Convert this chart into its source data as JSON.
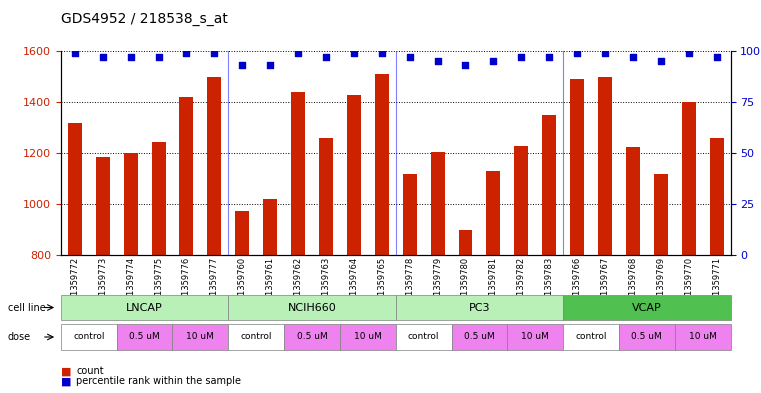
{
  "title": "GDS4952 / 218538_s_at",
  "samples": [
    "GSM1359772",
    "GSM1359773",
    "GSM1359774",
    "GSM1359775",
    "GSM1359776",
    "GSM1359777",
    "GSM1359760",
    "GSM1359761",
    "GSM1359762",
    "GSM1359763",
    "GSM1359764",
    "GSM1359765",
    "GSM1359778",
    "GSM1359779",
    "GSM1359780",
    "GSM1359781",
    "GSM1359782",
    "GSM1359783",
    "GSM1359766",
    "GSM1359767",
    "GSM1359768",
    "GSM1359769",
    "GSM1359770",
    "GSM1359771"
  ],
  "counts": [
    1320,
    1185,
    1200,
    1245,
    1420,
    1500,
    975,
    1020,
    1440,
    1260,
    1430,
    1510,
    1120,
    1205,
    900,
    1130,
    1230,
    1350,
    1490,
    1500,
    1225,
    1120,
    1400,
    1260
  ],
  "percentiles": [
    99,
    97,
    97,
    97,
    99,
    99,
    93,
    93,
    99,
    97,
    99,
    99,
    97,
    95,
    93,
    95,
    97,
    97,
    99,
    99,
    97,
    95,
    99,
    97
  ],
  "cell_lines": [
    {
      "name": "LNCAP",
      "start": 0,
      "end": 6,
      "color": "#90ee90"
    },
    {
      "name": "NCIH660",
      "start": 6,
      "end": 12,
      "color": "#90ee90"
    },
    {
      "name": "PC3",
      "start": 12,
      "end": 18,
      "color": "#90ee90"
    },
    {
      "name": "VCAP",
      "start": 18,
      "end": 24,
      "color": "#3cb371"
    }
  ],
  "doses": [
    {
      "name": "control",
      "start": 0,
      "end": 2,
      "color": "#ffffff"
    },
    {
      "name": "0.5 uM",
      "start": 2,
      "end": 4,
      "color": "#ee82ee"
    },
    {
      "name": "10 uM",
      "start": 4,
      "end": 6,
      "color": "#ee82ee"
    },
    {
      "name": "control",
      "start": 6,
      "end": 8,
      "color": "#ffffff"
    },
    {
      "name": "0.5 uM",
      "start": 8,
      "end": 10,
      "color": "#ee82ee"
    },
    {
      "name": "10 uM",
      "start": 10,
      "end": 12,
      "color": "#ee82ee"
    },
    {
      "name": "control",
      "start": 12,
      "end": 14,
      "color": "#ffffff"
    },
    {
      "name": "0.5 uM",
      "start": 14,
      "end": 16,
      "color": "#ee82ee"
    },
    {
      "name": "10 uM",
      "start": 16,
      "end": 18,
      "color": "#ee82ee"
    },
    {
      "name": "control",
      "start": 18,
      "end": 20,
      "color": "#ffffff"
    },
    {
      "name": "0.5 uM",
      "start": 20,
      "end": 22,
      "color": "#ee82ee"
    },
    {
      "name": "10 uM",
      "start": 22,
      "end": 24,
      "color": "#ee82ee"
    }
  ],
  "ylim_left": [
    800,
    1600
  ],
  "ylim_right": [
    0,
    100
  ],
  "yticks_left": [
    800,
    1000,
    1200,
    1400,
    1600
  ],
  "yticks_right": [
    0,
    25,
    50,
    75,
    100
  ],
  "bar_color": "#cc2200",
  "dot_color": "#0000cc",
  "bar_width": 0.5,
  "background_color": "#f0f0f0",
  "legend_count_color": "#cc2200",
  "legend_dot_color": "#0000cc",
  "cell_line_alt_color": "#98fb98",
  "cell_line_dark_color": "#3cb371"
}
